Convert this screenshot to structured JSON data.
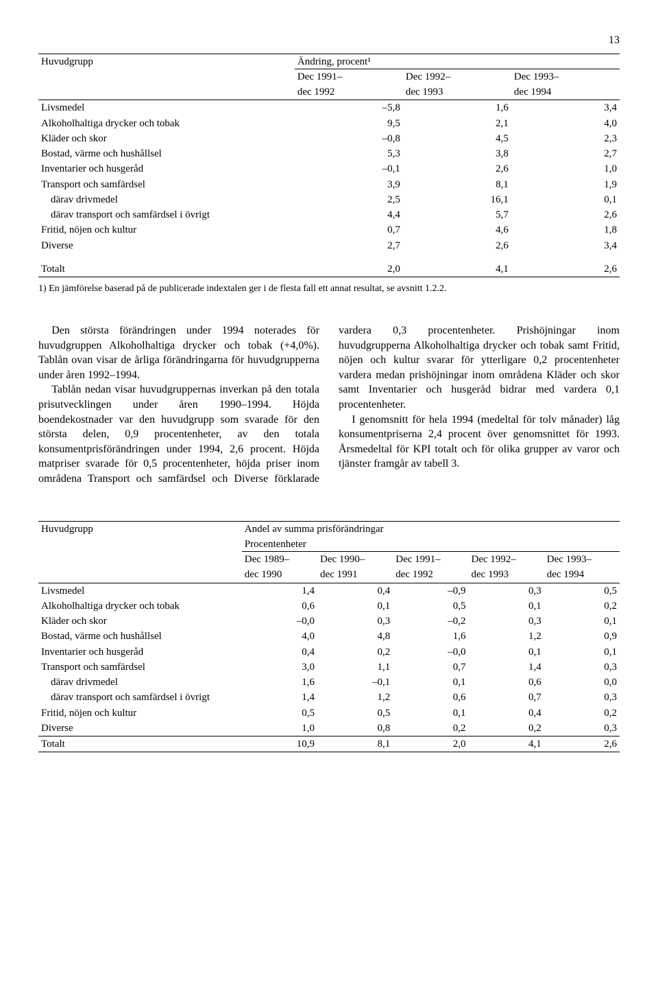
{
  "page_number": "13",
  "table1": {
    "col_group": "Huvudgrupp",
    "spanning_header": "Ändring, procent¹",
    "periods": [
      {
        "top": "Dec 1991–",
        "bottom": "dec 1992"
      },
      {
        "top": "Dec 1992–",
        "bottom": "dec 1993"
      },
      {
        "top": "Dec 1993–",
        "bottom": "dec 1994"
      }
    ],
    "rows": [
      {
        "label": "Livsmedel",
        "v": [
          "–5,8",
          "1,6",
          "3,4"
        ],
        "indent": false
      },
      {
        "label": "Alkoholhaltiga drycker och tobak",
        "v": [
          "9,5",
          "2,1",
          "4,0"
        ],
        "indent": false
      },
      {
        "label": "Kläder och skor",
        "v": [
          "–0,8",
          "4,5",
          "2,3"
        ],
        "indent": false
      },
      {
        "label": "Bostad, värme och hushållsel",
        "v": [
          "5,3",
          "3,8",
          "2,7"
        ],
        "indent": false
      },
      {
        "label": "Inventarier och husgeråd",
        "v": [
          "–0,1",
          "2,6",
          "1,0"
        ],
        "indent": false
      },
      {
        "label": "Transport och samfärdsel",
        "v": [
          "3,9",
          "8,1",
          "1,9"
        ],
        "indent": false
      },
      {
        "label": "därav drivmedel",
        "v": [
          "2,5",
          "16,1",
          "0,1"
        ],
        "indent": true
      },
      {
        "label": "därav transport och samfärdsel i övrigt",
        "v": [
          "4,4",
          "5,7",
          "2,6"
        ],
        "indent": true
      },
      {
        "label": "Fritid, nöjen och kultur",
        "v": [
          "0,7",
          "4,6",
          "1,8"
        ],
        "indent": false
      },
      {
        "label": "Diverse",
        "v": [
          "2,7",
          "2,6",
          "3,4"
        ],
        "indent": false
      }
    ],
    "total": {
      "label": "Totalt",
      "v": [
        "2,0",
        "4,1",
        "2,6"
      ]
    },
    "footnote": "1) En jämförelse baserad på de publicerade indextalen ger i de flesta fall ett annat resultat, se avsnitt 1.2.2."
  },
  "body": {
    "p1": "Den största förändringen under 1994 noterades för huvudgruppen Alkoholhaltiga drycker och tobak (+4,0%). Tablån ovan visar de årliga förändringarna för huvudgrupperna under åren 1992–1994.",
    "p2": "Tablån nedan visar huvudgruppernas inverkan på den totala prisutvecklingen under åren 1990–1994. Höjda boendekostnader var den huvudgrupp som svarade för den största delen, 0,9 procentenheter, av den totala konsumentprisförändringen under 1994, 2,6 procent. Höjda matpriser svarade för 0,5 procentenheter, höjda priser inom områdena Transport och samfärdsel och Diverse förklarade vardera 0,3 procentenheter. Prishöjningar inom huvudgrupperna Alkoholhaltiga drycker och tobak samt Fritid, nöjen och kultur svarar för ytterligare 0,2 procentenheter vardera medan prishöjningar inom områdena Kläder och skor samt Inventarier och husgeråd bidrar med vardera 0,1 procentenheter.",
    "p3": "I genomsnitt för hela 1994 (medeltal för tolv månader) låg konsumentpriserna 2,4 procent över genomsnittet för 1993. Årsmedeltal för KPI totalt och för olika grupper av varor och tjänster framgår av tabell 3."
  },
  "table2": {
    "col_group": "Huvudgrupp",
    "spanning_header_1": "Andel av summa prisförändringar",
    "spanning_header_2": "Procentenheter",
    "periods": [
      {
        "top": "Dec 1989–",
        "bottom": "dec 1990"
      },
      {
        "top": "Dec 1990–",
        "bottom": "dec 1991"
      },
      {
        "top": "Dec 1991–",
        "bottom": "dec 1992"
      },
      {
        "top": "Dec 1992–",
        "bottom": "dec 1993"
      },
      {
        "top": "Dec 1993–",
        "bottom": "dec 1994"
      }
    ],
    "rows": [
      {
        "label": "Livsmedel",
        "v": [
          "1,4",
          "0,4",
          "–0,9",
          "0,3",
          "0,5"
        ],
        "indent": false
      },
      {
        "label": "Alkoholhaltiga drycker och tobak",
        "v": [
          "0,6",
          "0,1",
          "0,5",
          "0,1",
          "0,2"
        ],
        "indent": false
      },
      {
        "label": "Kläder och skor",
        "v": [
          "–0,0",
          "0,3",
          "–0,2",
          "0,3",
          "0,1"
        ],
        "indent": false
      },
      {
        "label": "Bostad, värme och hushållsel",
        "v": [
          "4,0",
          "4,8",
          "1,6",
          "1,2",
          "0,9"
        ],
        "indent": false
      },
      {
        "label": "Inventarier och husgeråd",
        "v": [
          "0,4",
          "0,2",
          "–0,0",
          "0,1",
          "0,1"
        ],
        "indent": false
      },
      {
        "label": "Transport och samfärdsel",
        "v": [
          "3,0",
          "1,1",
          "0,7",
          "1,4",
          "0,3"
        ],
        "indent": false
      },
      {
        "label": "därav drivmedel",
        "v": [
          "1,6",
          "–0,1",
          "0,1",
          "0,6",
          "0,0"
        ],
        "indent": true
      },
      {
        "label": "därav transport och samfärdsel i övrigt",
        "v": [
          "1,4",
          "1,2",
          "0,6",
          "0,7",
          "0,3"
        ],
        "indent": true
      },
      {
        "label": "Fritid, nöjen och kultur",
        "v": [
          "0,5",
          "0,5",
          "0,1",
          "0,4",
          "0,2"
        ],
        "indent": false
      },
      {
        "label": "Diverse",
        "v": [
          "1,0",
          "0,8",
          "0,2",
          "0,2",
          "0,3"
        ],
        "indent": false
      }
    ],
    "total": {
      "label": "Totalt",
      "v": [
        "10,9",
        "8,1",
        "2,0",
        "4,1",
        "2,6"
      ]
    }
  }
}
